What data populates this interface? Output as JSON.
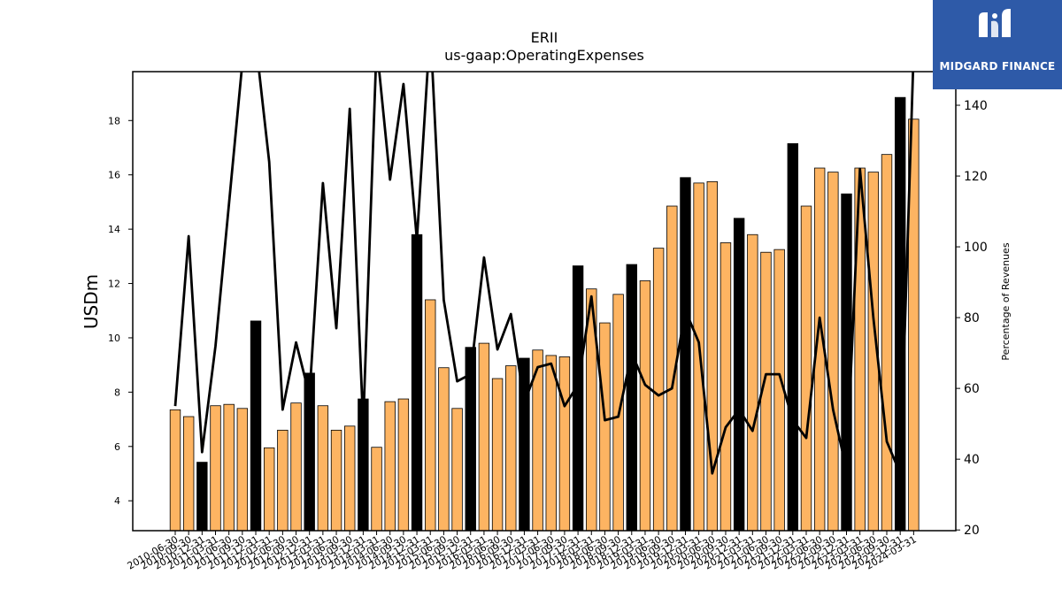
{
  "brand": {
    "name": "MIDGARD FINANCE",
    "logo_color": "#2e5aa8"
  },
  "chart_data": {
    "type": "bar",
    "title": "ERII",
    "subtitle": "us-gaap:OperatingExpenses",
    "ylabel": "USDm",
    "y2label": "Percentage of Revenues",
    "ylim": [
      2.9,
      19.8
    ],
    "y2lim": [
      19.8,
      149.5
    ],
    "yticks": [
      4,
      6,
      8,
      10,
      12,
      14,
      16,
      18
    ],
    "y2ticks": [
      20,
      40,
      60,
      80,
      100,
      120,
      140
    ],
    "categories": [
      "2010-06-30",
      "2010-09-30",
      "2010-12-31",
      "2011-03-31",
      "2011-06-30",
      "2011-09-30",
      "2011-12-31",
      "2012-03-31",
      "2012-06-30",
      "2012-09-30",
      "2012-12-31",
      "2013-03-31",
      "2013-06-30",
      "2013-09-30",
      "2013-12-31",
      "2014-03-31",
      "2014-06-30",
      "2014-09-30",
      "2014-12-31",
      "2015-03-31",
      "2015-06-30",
      "2015-09-30",
      "2015-12-31",
      "2016-03-31",
      "2016-06-30",
      "2016-09-30",
      "2016-12-31",
      "2017-03-31",
      "2017-06-30",
      "2017-09-30",
      "2017-12-31",
      "2018-03-31",
      "2018-06-30",
      "2018-09-30",
      "2018-12-31",
      "2019-03-31",
      "2019-06-30",
      "2019-09-30",
      "2019-12-31",
      "2020-03-31",
      "2020-06-30",
      "2020-09-30",
      "2020-12-31",
      "2021-03-31",
      "2021-06-30",
      "2021-09-30",
      "2021-12-31",
      "2022-03-31",
      "2022-06-30",
      "2022-09-30",
      "2022-12-31",
      "2023-03-31",
      "2023-06-30",
      "2023-09-30",
      "2023-12-31",
      "2024-03-31"
    ],
    "xtick_labels": [
      "2010-06-30",
      "2010-09-30",
      "2010-12-31",
      "2011-03-31",
      "2011-06-30",
      "2011-09-30",
      "2011-12-31",
      "2012-03-31",
      "2012-06-30",
      "2012-09-30",
      "2012-12-31",
      "2013-03-31",
      "2013-06-30",
      "2013-09-30",
      "2013-12-31",
      "2014-03-31",
      "2014-06-30",
      "2014-09-30",
      "2014-12-31",
      "2015-03-31",
      "2015-06-30",
      "2015-09-30",
      "2015-12-31",
      "2016-03-31",
      "2016-06-30",
      "2016-09-30",
      "2016-12-31",
      "2017-03-31",
      "2017-06-30",
      "2017-09-30",
      "2017-12-31",
      "2018-03-31",
      "2018-06-30",
      "2018-09-30",
      "2018-12-31",
      "2019-03-31",
      "2019-06-30",
      "2019-09-30",
      "2019-12-31",
      "2020-03-31",
      "2020-06-30",
      "2020-09-30",
      "2020-12-31",
      "2021-03-31",
      "2021-06-30",
      "2021-09-30",
      "2021-12-31",
      "2022-03-31",
      "2022-06-30",
      "2022-09-30",
      "2022-12-31",
      "2023-03-31",
      "2023-06-30",
      "2023-09-30",
      "2023-12-31",
      "2024-03-31"
    ],
    "bar_values": [
      7.35,
      7.1,
      5.42,
      7.5,
      7.55,
      7.4,
      10.62,
      5.95,
      6.6,
      7.6,
      8.7,
      7.5,
      6.6,
      6.75,
      7.75,
      5.97,
      7.65,
      7.75,
      13.8,
      11.4,
      8.9,
      7.4,
      9.65,
      9.8,
      8.5,
      8.97,
      9.25,
      9.55,
      9.35,
      9.3,
      12.65,
      11.8,
      10.55,
      11.6,
      12.7,
      12.1,
      13.3,
      14.85,
      15.9,
      15.7,
      15.75,
      13.5,
      14.4,
      13.8,
      13.15,
      13.25,
      17.15,
      14.85,
      16.25,
      16.1,
      15.3,
      16.25,
      16.1,
      16.75,
      18.85,
      18.05
    ],
    "bar_highlight": [
      false,
      false,
      true,
      false,
      false,
      false,
      true,
      false,
      false,
      false,
      true,
      false,
      false,
      false,
      true,
      false,
      false,
      false,
      true,
      false,
      false,
      false,
      true,
      false,
      false,
      false,
      true,
      false,
      false,
      false,
      true,
      false,
      false,
      false,
      true,
      false,
      false,
      false,
      true,
      false,
      false,
      false,
      true,
      false,
      false,
      false,
      true,
      false,
      false,
      false,
      true,
      false,
      false,
      false,
      true,
      false
    ],
    "bar_color": "#fdb462",
    "highlight_color": "#000000",
    "line_values": [
      55,
      103,
      42,
      72,
      112,
      152,
      158,
      124,
      54,
      73,
      58,
      118,
      77,
      139,
      50,
      157,
      119,
      146,
      102,
      162,
      85,
      62,
      64,
      97,
      71,
      81,
      56,
      66,
      67,
      55,
      61,
      86,
      51,
      52,
      70,
      61,
      58,
      60,
      82,
      73,
      36,
      49,
      54,
      48,
      64,
      64,
      51,
      46,
      80,
      54,
      37,
      122,
      80,
      45,
      36,
      155
    ],
    "line_color": "#000000",
    "grid": false
  }
}
